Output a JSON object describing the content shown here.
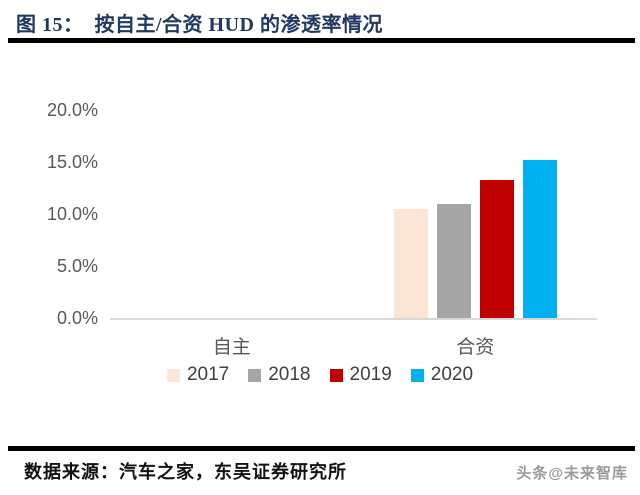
{
  "figure": {
    "title": "图 15：  按自主/合资 HUD 的渗透率情况"
  },
  "chart_data": {
    "type": "bar",
    "title": "按自主/合资 HUD 的渗透率情况",
    "categories": [
      "自主",
      "合资"
    ],
    "series": [
      {
        "name": "2017",
        "color": "#FBE5D6",
        "values": [
          0,
          10.5
        ]
      },
      {
        "name": "2018",
        "color": "#A6A6A6",
        "values": [
          0,
          11.0
        ]
      },
      {
        "name": "2019",
        "color": "#C00000",
        "values": [
          0,
          13.3
        ]
      },
      {
        "name": "2020",
        "color": "#00B0F0",
        "values": [
          0,
          15.2
        ]
      }
    ],
    "ylim": [
      0,
      20
    ],
    "yticks": [
      {
        "value": 0,
        "label": "0.0%"
      },
      {
        "value": 5,
        "label": "5.0%"
      },
      {
        "value": 10,
        "label": "10.0%"
      },
      {
        "value": 15,
        "label": "15.0%"
      },
      {
        "value": 20,
        "label": "20.0%"
      }
    ],
    "grid": false,
    "legend_position": "bottom"
  },
  "footer": {
    "source": "数据来源：汽车之家，东吴证券研究所",
    "watermark": "头条@未来智库"
  },
  "colors": {
    "title_text": "#1F3864",
    "axis_text": "#595959",
    "legend_text": "#404040",
    "rule": "#000000",
    "baseline": "#D9D9D9"
  }
}
